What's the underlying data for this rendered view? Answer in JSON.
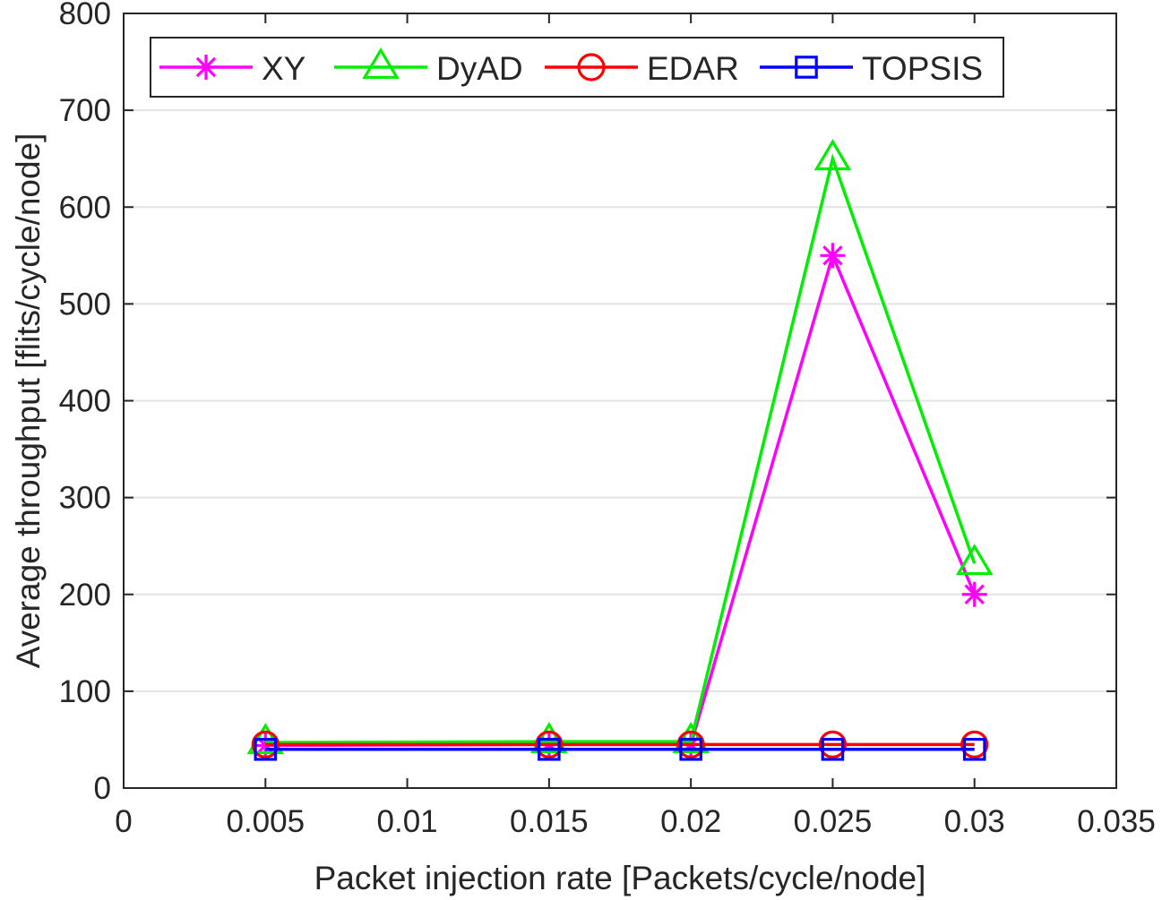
{
  "chart_data": {
    "type": "line",
    "title": "",
    "xlabel": "Packet injection rate [Packets/cycle/node]",
    "ylabel": "Average throughput [flits/cycle/node]",
    "xlim": [
      0,
      0.035
    ],
    "ylim": [
      0,
      800
    ],
    "x_ticks": [
      "0",
      "0.005",
      "0.01",
      "0.015",
      "0.02",
      "0.025",
      "0.03",
      "0.035"
    ],
    "y_ticks": [
      "0",
      "100",
      "200",
      "300",
      "400",
      "500",
      "600",
      "700",
      "800"
    ],
    "grid": "horizontal",
    "legend_position": "top",
    "x": [
      0.005,
      0.015,
      0.02,
      0.025,
      0.03
    ],
    "series": [
      {
        "name": "XY",
        "color": "#ff00ff",
        "marker": "asterisk",
        "values": [
          44,
          45,
          45,
          550,
          200
        ]
      },
      {
        "name": "DyAD",
        "color": "#00ee00",
        "marker": "triangle",
        "values": [
          47,
          48,
          48,
          650,
          232
        ]
      },
      {
        "name": "EDAR",
        "color": "#ff0000",
        "marker": "circle",
        "values": [
          45,
          45,
          45,
          45,
          45
        ]
      },
      {
        "name": "TOPSIS",
        "color": "#0000ff",
        "marker": "square",
        "values": [
          40,
          40,
          40,
          40,
          40
        ]
      }
    ]
  }
}
